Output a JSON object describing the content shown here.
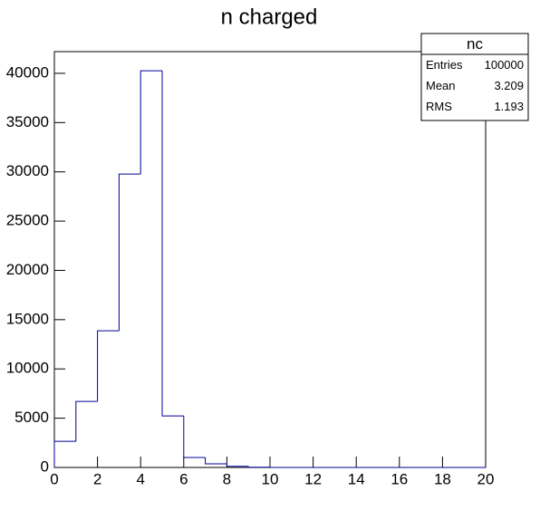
{
  "chart_data": {
    "type": "histogram",
    "title": "n charged",
    "bins": [
      0,
      1,
      2,
      3,
      4,
      5,
      6,
      7,
      8,
      9,
      10,
      11,
      12,
      13,
      14,
      15,
      16,
      17,
      18,
      19,
      20
    ],
    "values": [
      2650,
      6700,
      13870,
      29780,
      40260,
      5230,
      1010,
      370,
      110,
      20,
      0,
      0,
      0,
      0,
      0,
      0,
      0,
      0,
      0,
      0
    ],
    "color": "#000099",
    "xlim": [
      0,
      20
    ],
    "xticks": [
      0,
      2,
      4,
      6,
      8,
      10,
      12,
      14,
      16,
      18,
      20
    ],
    "ylim": [
      0,
      42200
    ],
    "yticks": [
      0,
      5000,
      10000,
      15000,
      20000,
      25000,
      30000,
      35000,
      40000
    ],
    "stats": {
      "title": "nc",
      "rows": [
        [
          "Entries",
          "100000"
        ],
        [
          "Mean",
          "3.209"
        ],
        [
          "RMS",
          "1.193"
        ]
      ]
    }
  }
}
